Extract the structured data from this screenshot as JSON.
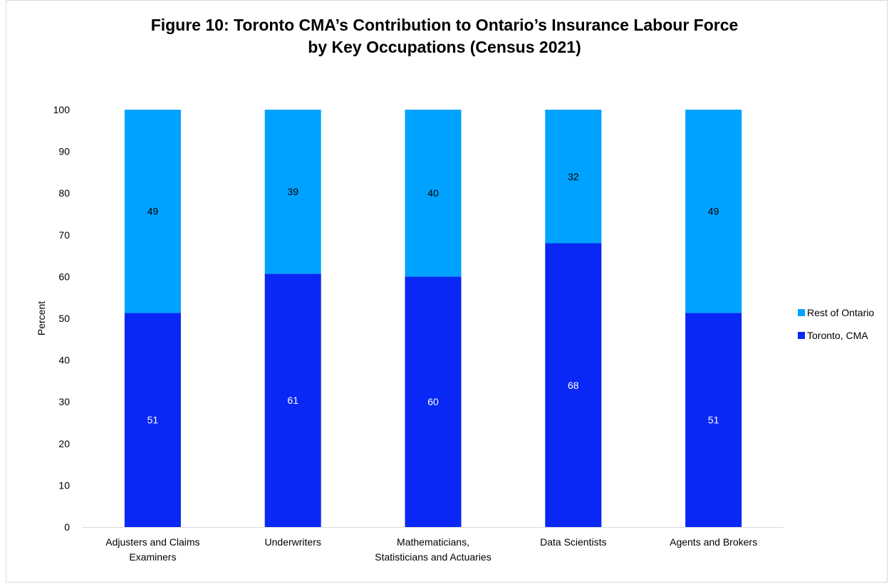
{
  "chart_data": {
    "type": "bar",
    "stacked": true,
    "title_line1": "Figure 10: Toronto CMA’s Contribution to Ontario’s Insurance Labour Force",
    "title_line2": "by Key Occupations (Census 2021)",
    "ylabel": "Percent",
    "xlabel": "",
    "ylim": [
      0,
      100
    ],
    "yticks": [
      0,
      10,
      20,
      30,
      40,
      50,
      60,
      70,
      80,
      90,
      100
    ],
    "grid": false,
    "legend_position": "right",
    "categories": [
      [
        "Adjusters and Claims",
        "Examiners"
      ],
      [
        "Underwriters"
      ],
      [
        "Mathematicians,",
        "Statisticians and Actuaries"
      ],
      [
        "Data Scientists"
      ],
      [
        "Agents and Brokers"
      ]
    ],
    "series": [
      {
        "name": "Toronto, CMA",
        "color": "#0a28f5",
        "label_color": "#ffffff",
        "values": [
          51.3,
          60.7,
          60.0,
          68.0,
          51.3
        ],
        "labels": [
          "51",
          "61",
          "60",
          "68",
          "51"
        ]
      },
      {
        "name": "Rest of Ontario",
        "color": "#00a2ff",
        "label_color": "#000000",
        "values": [
          48.7,
          39.3,
          40.0,
          32.0,
          48.7
        ],
        "labels": [
          "49",
          "39",
          "40",
          "32",
          "49"
        ]
      }
    ],
    "legend_order": [
      "Rest of Ontario",
      "Toronto, CMA"
    ]
  }
}
